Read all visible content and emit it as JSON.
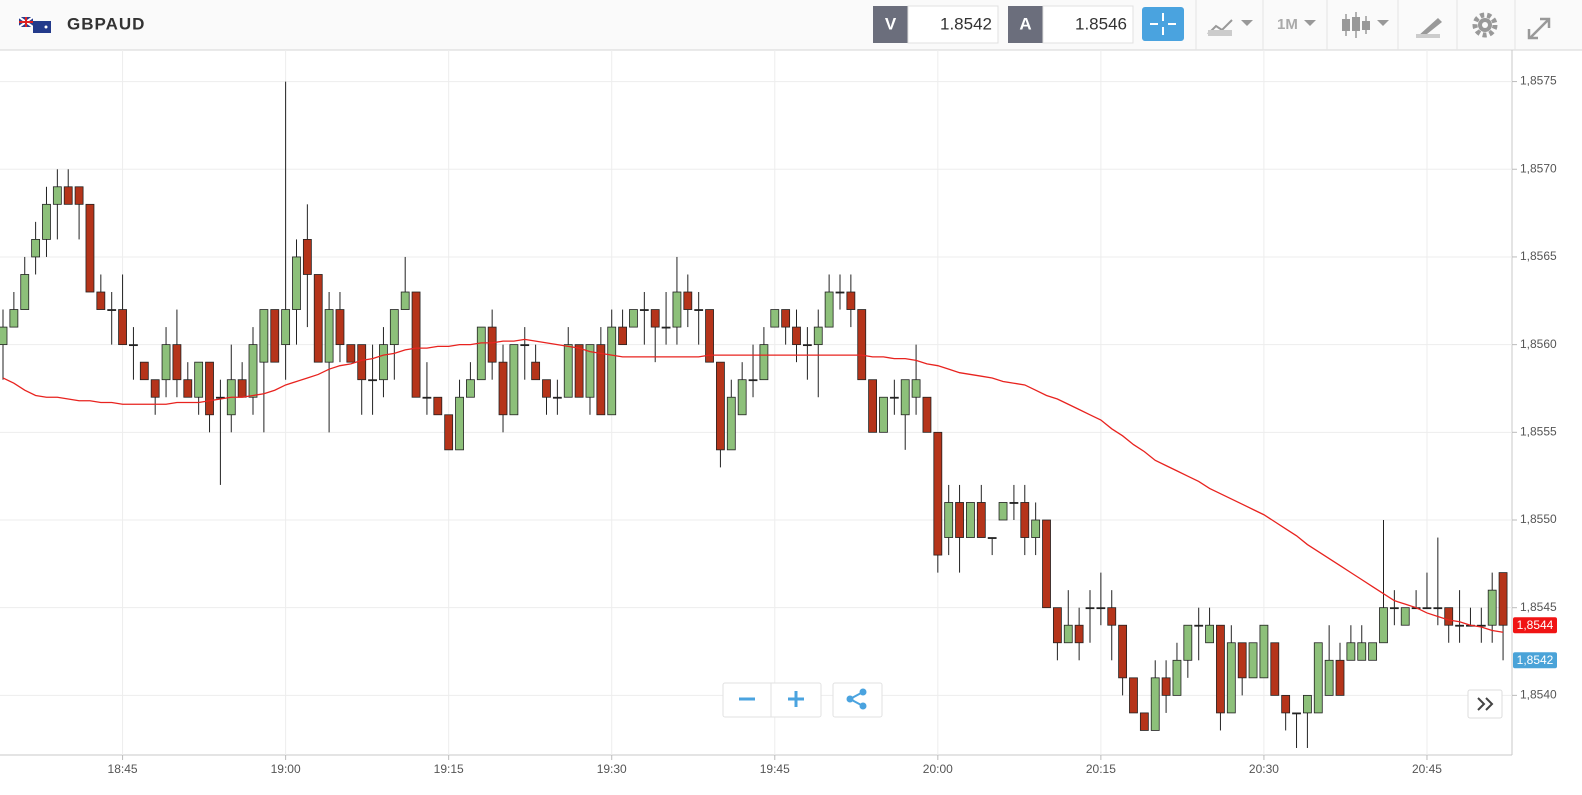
{
  "header": {
    "symbol": "GBPAUD",
    "sell_label": "V",
    "sell": 1.8542,
    "buy_label": "A",
    "buy": 1.8546,
    "timeframe": "1M"
  },
  "chart_data": {
    "type": "candlestick",
    "categories": [
      null,
      null,
      null,
      null,
      null,
      null,
      null,
      null,
      null,
      null,
      null,
      "18:45",
      null,
      null,
      null,
      null,
      null,
      null,
      null,
      null,
      null,
      null,
      null,
      null,
      null,
      null,
      "19:00",
      null,
      null,
      null,
      null,
      null,
      null,
      null,
      null,
      null,
      null,
      null,
      null,
      null,
      null,
      "19:15",
      null,
      null,
      null,
      null,
      null,
      null,
      null,
      null,
      null,
      null,
      null,
      null,
      null,
      null,
      "19:30",
      null,
      null,
      null,
      null,
      null,
      null,
      null,
      null,
      null,
      null,
      null,
      null,
      null,
      null,
      "19:45",
      null,
      null,
      null,
      null,
      null,
      null,
      null,
      null,
      null,
      null,
      null,
      null,
      null,
      null,
      "20:00",
      null,
      null,
      null,
      null,
      null,
      null,
      null,
      null,
      null,
      null,
      null,
      null,
      null,
      null,
      "20:15",
      null,
      null,
      null,
      null,
      null,
      null,
      null,
      null,
      null,
      null,
      null,
      null,
      null,
      null,
      "20:30",
      null,
      null,
      null,
      null,
      null,
      null,
      null,
      null,
      null,
      null,
      null,
      null,
      null,
      null,
      "20:45",
      null,
      null,
      null,
      null,
      null,
      null,
      null
    ],
    "open": [
      1.856,
      1.8561,
      1.8562,
      1.8565,
      1.8566,
      1.8568,
      1.8569,
      1.8569,
      1.8568,
      1.8563,
      1.8562,
      1.8562,
      1.856,
      1.8559,
      1.8558,
      1.8558,
      1.856,
      1.8558,
      1.8557,
      1.8559,
      1.8557,
      1.8556,
      1.8558,
      1.8557,
      1.8559,
      1.8562,
      1.856,
      1.8562,
      1.8566,
      1.8564,
      1.8559,
      1.8562,
      1.856,
      1.856,
      1.8558,
      1.8558,
      1.856,
      1.8562,
      1.8563,
      1.8557,
      1.8557,
      1.8556,
      1.8554,
      1.8557,
      1.8558,
      1.8561,
      1.8559,
      1.8556,
      1.856,
      1.8559,
      1.8558,
      1.8557,
      1.8557,
      1.856,
      1.8557,
      1.856,
      1.8556,
      1.8561,
      1.8561,
      1.8562,
      1.8562,
      1.8561,
      1.8561,
      1.8563,
      1.8562,
      1.8562,
      1.8559,
      1.8554,
      1.8556,
      1.8558,
      1.8558,
      1.8561,
      1.8562,
      1.8561,
      1.856,
      1.856,
      1.8561,
      1.8563,
      1.8563,
      1.8562,
      1.8558,
      1.8555,
      1.8557,
      1.8556,
      1.8557,
      1.8557,
      1.8555,
      1.8549,
      1.8551,
      1.8549,
      1.8551,
      1.8549,
      1.855,
      1.8551,
      1.8551,
      1.8549,
      1.855,
      1.8545,
      1.8543,
      1.8544,
      1.8545,
      1.8545,
      1.8545,
      1.8544,
      1.8541,
      1.8539,
      1.8538,
      1.8541,
      1.854,
      1.8542,
      1.8544,
      1.8543,
      1.8544,
      1.8539,
      1.8543,
      1.8541,
      1.8541,
      1.8543,
      1.854,
      1.8539,
      1.8539,
      1.8539,
      1.854,
      1.8542,
      1.8542,
      1.8542,
      1.8542,
      1.8543,
      1.8545,
      1.8544,
      1.8545,
      1.8545,
      1.8545,
      1.8545,
      1.8544,
      1.8544,
      1.8544,
      1.8544,
      1.8547
    ],
    "high": [
      1.8562,
      1.8563,
      1.8565,
      1.8567,
      1.8569,
      1.857,
      1.857,
      1.8569,
      1.8568,
      1.8564,
      1.8563,
      1.8564,
      1.8561,
      1.8559,
      1.8558,
      1.8561,
      1.8562,
      1.8559,
      1.8559,
      1.8559,
      1.8558,
      1.856,
      1.8559,
      1.8561,
      1.8562,
      1.8562,
      1.8575,
      1.8566,
      1.8568,
      1.8564,
      1.8563,
      1.8563,
      1.856,
      1.856,
      1.856,
      1.8561,
      1.8562,
      1.8565,
      1.8563,
      1.8559,
      1.8557,
      1.8556,
      1.8558,
      1.8559,
      1.8561,
      1.8562,
      1.856,
      1.856,
      1.8561,
      1.856,
      1.8558,
      1.8558,
      1.8561,
      1.856,
      1.856,
      1.8561,
      1.8562,
      1.8562,
      1.8562,
      1.8563,
      1.8562,
      1.8563,
      1.8565,
      1.8564,
      1.8563,
      1.8562,
      1.8559,
      1.8558,
      1.8559,
      1.856,
      1.8561,
      1.8562,
      1.8562,
      1.8562,
      1.8561,
      1.8562,
      1.8564,
      1.8564,
      1.8564,
      1.8562,
      1.8558,
      1.8557,
      1.8558,
      1.8558,
      1.856,
      1.8557,
      1.8555,
      1.8552,
      1.8552,
      1.8551,
      1.8552,
      1.8549,
      1.8551,
      1.8552,
      1.8552,
      1.8551,
      1.855,
      1.8545,
      1.8546,
      1.8545,
      1.8546,
      1.8547,
      1.8546,
      1.8544,
      1.8541,
      1.8539,
      1.8542,
      1.8542,
      1.8543,
      1.8544,
      1.8545,
      1.8545,
      1.8544,
      1.8544,
      1.8543,
      1.8543,
      1.8544,
      1.8543,
      1.854,
      1.8539,
      1.854,
      1.8543,
      1.8544,
      1.8543,
      1.8544,
      1.8544,
      1.8543,
      1.855,
      1.8546,
      1.8545,
      1.8546,
      1.8547,
      1.8549,
      1.8545,
      1.8546,
      1.8545,
      1.8545,
      1.8547,
      1.8547
    ],
    "low": [
      1.8558,
      1.8561,
      1.8562,
      1.8564,
      1.8565,
      1.8566,
      1.8568,
      1.8566,
      1.8563,
      1.8562,
      1.856,
      1.856,
      1.8558,
      1.8558,
      1.8556,
      1.8557,
      1.8557,
      1.8557,
      1.8556,
      1.8555,
      1.8552,
      1.8555,
      1.8557,
      1.8556,
      1.8555,
      1.8559,
      1.8558,
      1.856,
      1.8561,
      1.8559,
      1.8555,
      1.8559,
      1.8559,
      1.8556,
      1.8556,
      1.8557,
      1.8558,
      1.8562,
      1.8557,
      1.8556,
      1.8556,
      1.8554,
      1.8554,
      1.8557,
      1.8558,
      1.8558,
      1.8555,
      1.8556,
      1.8558,
      1.8558,
      1.8556,
      1.8556,
      1.8557,
      1.8557,
      1.8556,
      1.8556,
      1.8556,
      1.856,
      1.8561,
      1.856,
      1.8559,
      1.856,
      1.856,
      1.8561,
      1.856,
      1.8559,
      1.8553,
      1.8554,
      1.8556,
      1.8557,
      1.8558,
      1.8561,
      1.856,
      1.8559,
      1.8558,
      1.8557,
      1.8561,
      1.8562,
      1.8561,
      1.8558,
      1.8555,
      1.8555,
      1.8556,
      1.8554,
      1.8556,
      1.8555,
      1.8547,
      1.8548,
      1.8547,
      1.8549,
      1.8549,
      1.8548,
      1.855,
      1.855,
      1.8548,
      1.8548,
      1.8545,
      1.8542,
      1.8543,
      1.8542,
      1.8543,
      1.8544,
      1.8542,
      1.854,
      1.8539,
      1.8538,
      1.8538,
      1.8539,
      1.854,
      1.8541,
      1.8542,
      1.8543,
      1.8538,
      1.8539,
      1.854,
      1.8541,
      1.8541,
      1.854,
      1.8538,
      1.8537,
      1.8537,
      1.8539,
      1.854,
      1.854,
      1.8542,
      1.8542,
      1.8542,
      1.8543,
      1.8544,
      1.8544,
      1.8545,
      1.8545,
      1.8544,
      1.8543,
      1.8543,
      1.8544,
      1.8543,
      1.8543,
      1.8542
    ],
    "close": [
      1.8561,
      1.8562,
      1.8564,
      1.8566,
      1.8568,
      1.8569,
      1.8568,
      1.8568,
      1.8563,
      1.8562,
      1.8562,
      1.856,
      1.856,
      1.8558,
      1.8557,
      1.856,
      1.8558,
      1.8557,
      1.8559,
      1.8556,
      1.8557,
      1.8558,
      1.8557,
      1.856,
      1.8562,
      1.8559,
      1.8562,
      1.8565,
      1.8564,
      1.8559,
      1.8562,
      1.856,
      1.8559,
      1.8558,
      1.8558,
      1.856,
      1.8562,
      1.8563,
      1.8557,
      1.8557,
      1.8556,
      1.8554,
      1.8557,
      1.8558,
      1.8561,
      1.8559,
      1.8556,
      1.856,
      1.856,
      1.8558,
      1.8557,
      1.8557,
      1.856,
      1.8557,
      1.856,
      1.8556,
      1.8561,
      1.856,
      1.8562,
      1.8562,
      1.8561,
      1.8561,
      1.8563,
      1.8562,
      1.8562,
      1.8559,
      1.8554,
      1.8557,
      1.8558,
      1.8558,
      1.856,
      1.8562,
      1.8561,
      1.856,
      1.856,
      1.8561,
      1.8563,
      1.8563,
      1.8562,
      1.8558,
      1.8555,
      1.8557,
      1.8557,
      1.8558,
      1.8558,
      1.8555,
      1.8548,
      1.8551,
      1.8549,
      1.8551,
      1.8549,
      1.8549,
      1.8551,
      1.8551,
      1.8549,
      1.855,
      1.8545,
      1.8543,
      1.8544,
      1.8543,
      1.8545,
      1.8545,
      1.8544,
      1.8541,
      1.8539,
      1.8538,
      1.8541,
      1.854,
      1.8542,
      1.8544,
      1.8544,
      1.8544,
      1.8539,
      1.8543,
      1.8541,
      1.8543,
      1.8544,
      1.854,
      1.8539,
      1.8539,
      1.854,
      1.8543,
      1.8542,
      1.854,
      1.8543,
      1.8543,
      1.8543,
      1.8545,
      1.8545,
      1.8545,
      1.8545,
      1.8545,
      1.8545,
      1.8544,
      1.8544,
      1.8544,
      1.8544,
      1.8546,
      1.8544
    ],
    "up_color": "#8dc07a",
    "down_color": "#b5341a",
    "ma": {
      "color": "#e8231f",
      "values": [
        1.85581,
        1.85578,
        1.85574,
        1.85571,
        1.8557,
        1.8557,
        1.85569,
        1.85568,
        1.85568,
        1.85567,
        1.85567,
        1.85566,
        1.85566,
        1.85566,
        1.85566,
        1.85566,
        1.85567,
        1.85567,
        1.85567,
        1.85568,
        1.85569,
        1.8557,
        1.8557,
        1.85571,
        1.85572,
        1.85574,
        1.85577,
        1.85579,
        1.85581,
        1.85583,
        1.85586,
        1.85588,
        1.85589,
        1.85591,
        1.85592,
        1.85594,
        1.85595,
        1.85597,
        1.85598,
        1.85598,
        1.85599,
        1.85599,
        1.856,
        1.856,
        1.85601,
        1.85601,
        1.85602,
        1.85602,
        1.85603,
        1.85602,
        1.85601,
        1.856,
        1.85599,
        1.85598,
        1.85596,
        1.85595,
        1.85594,
        1.85593,
        1.85593,
        1.85593,
        1.85593,
        1.85593,
        1.85593,
        1.85593,
        1.85593,
        1.85594,
        1.85594,
        1.85594,
        1.85594,
        1.85594,
        1.85594,
        1.85594,
        1.85594,
        1.85594,
        1.85594,
        1.85594,
        1.85594,
        1.85594,
        1.85594,
        1.85594,
        1.85593,
        1.85593,
        1.85592,
        1.85592,
        1.85591,
        1.85589,
        1.85588,
        1.85586,
        1.85584,
        1.85583,
        1.85582,
        1.85581,
        1.85579,
        1.85578,
        1.85577,
        1.85574,
        1.85571,
        1.85569,
        1.85566,
        1.85563,
        1.8556,
        1.85557,
        1.85552,
        1.85548,
        1.85543,
        1.85539,
        1.85534,
        1.85531,
        1.85528,
        1.85525,
        1.85522,
        1.85518,
        1.85515,
        1.85512,
        1.85509,
        1.85506,
        1.85503,
        1.85499,
        1.85495,
        1.85491,
        1.85486,
        1.85482,
        1.85478,
        1.85474,
        1.8547,
        1.85466,
        1.85462,
        1.85458,
        1.85454,
        1.85452,
        1.8545,
        1.85447,
        1.85445,
        1.85443,
        1.85442,
        1.8544,
        1.85439,
        1.85437,
        1.85436
      ]
    },
    "ylim": [
      1.85366,
      1.85768
    ],
    "yticks": [
      {
        "value": 1.854,
        "label": "1,8540"
      },
      {
        "value": 1.8545,
        "label": "1,8545"
      },
      {
        "value": 1.855,
        "label": "1,8550"
      },
      {
        "value": 1.8555,
        "label": "1,8555"
      },
      {
        "value": 1.856,
        "label": "1,8560"
      },
      {
        "value": 1.8565,
        "label": "1,8565"
      },
      {
        "value": 1.857,
        "label": "1,8570"
      },
      {
        "value": 1.8575,
        "label": "1,8575"
      }
    ],
    "price_tags": [
      {
        "value": 1.8544,
        "label": "1,8544",
        "color": "#f01414"
      },
      {
        "value": 1.8542,
        "label": "1,8542",
        "color": "#4aa3d8"
      }
    ],
    "grid": true
  }
}
